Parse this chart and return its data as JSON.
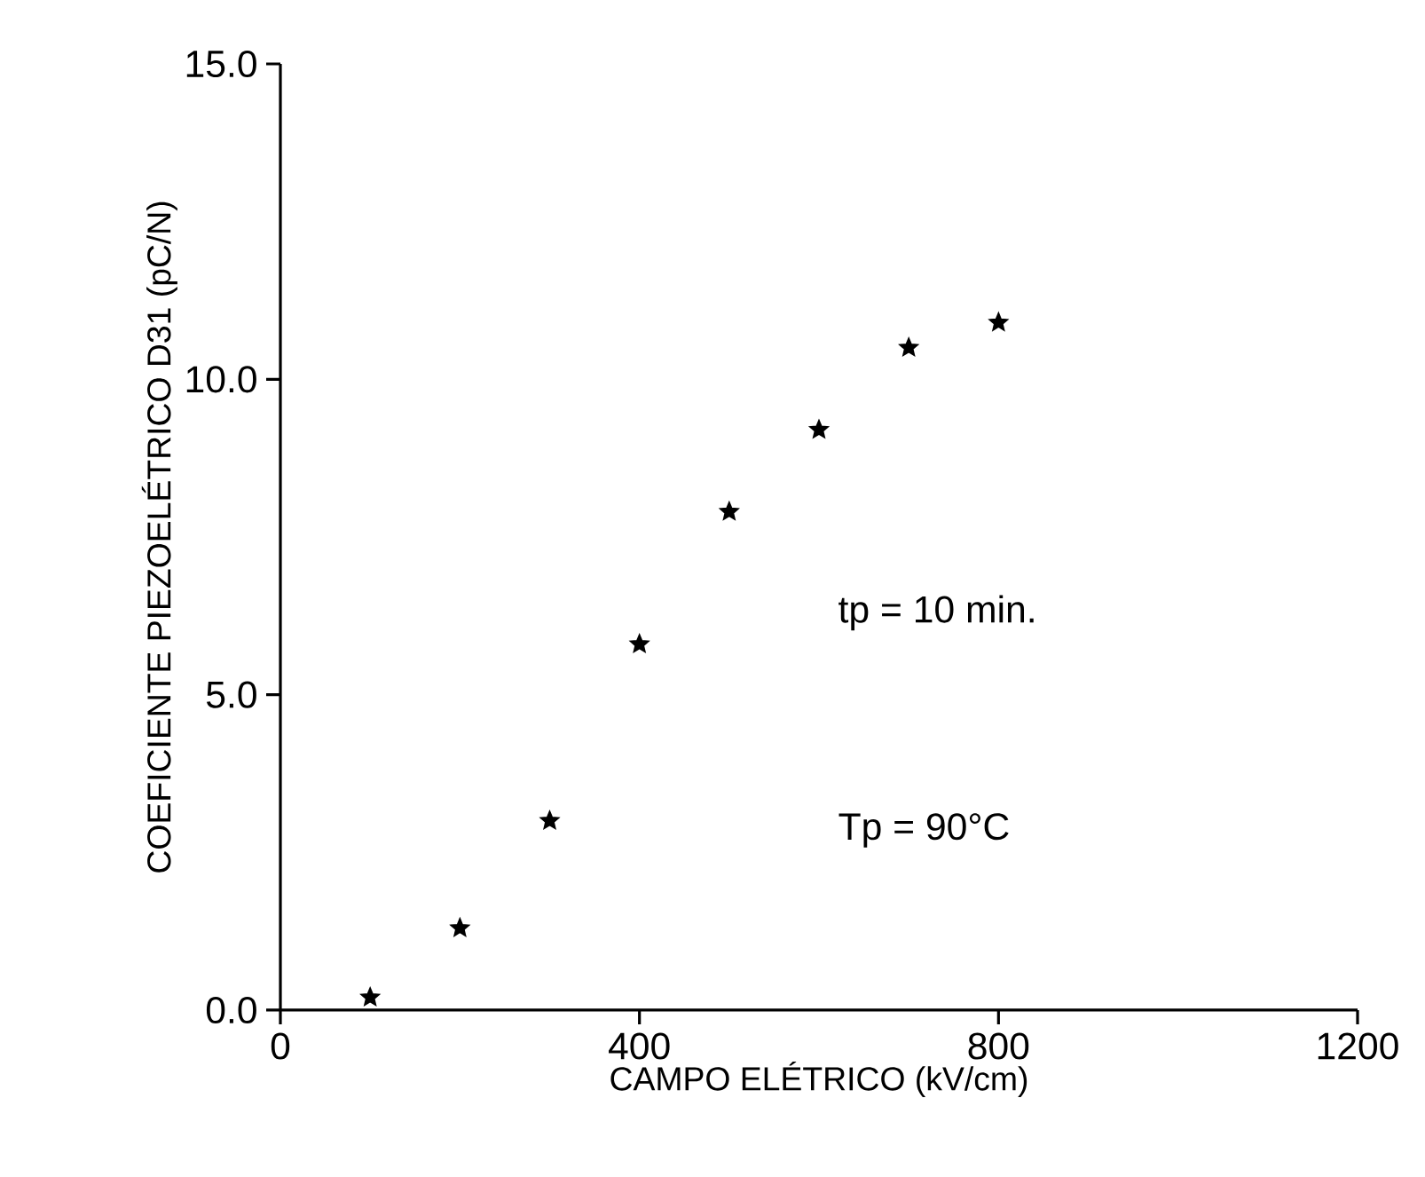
{
  "chart_data": {
    "type": "scatter",
    "xlabel": "CAMPO ELÉTRICO (kV/cm)",
    "ylabel": "COEFICIENTE PIEZOELÉTRICO D31 (pC/N)",
    "x": [
      100,
      200,
      300,
      400,
      500,
      600,
      700,
      800
    ],
    "series": [
      {
        "color": "#000000",
        "values": [
          0.2,
          1.3,
          3.0,
          5.8,
          7.9,
          9.2,
          10.5,
          10.9
        ]
      }
    ],
    "marker": "star",
    "xlim": [
      0,
      1200
    ],
    "ylim": [
      0,
      15
    ],
    "xticks": [
      0,
      400,
      800,
      1200
    ],
    "yticks": [
      {
        "value": 0,
        "label": "0.0"
      },
      {
        "value": 5,
        "label": "5.0"
      },
      {
        "value": 10,
        "label": "10.0"
      },
      {
        "value": 15,
        "label": "15.0"
      }
    ],
    "annotations": [
      "tp = 10 min.",
      "Tp = 90°C"
    ],
    "grid": false
  }
}
